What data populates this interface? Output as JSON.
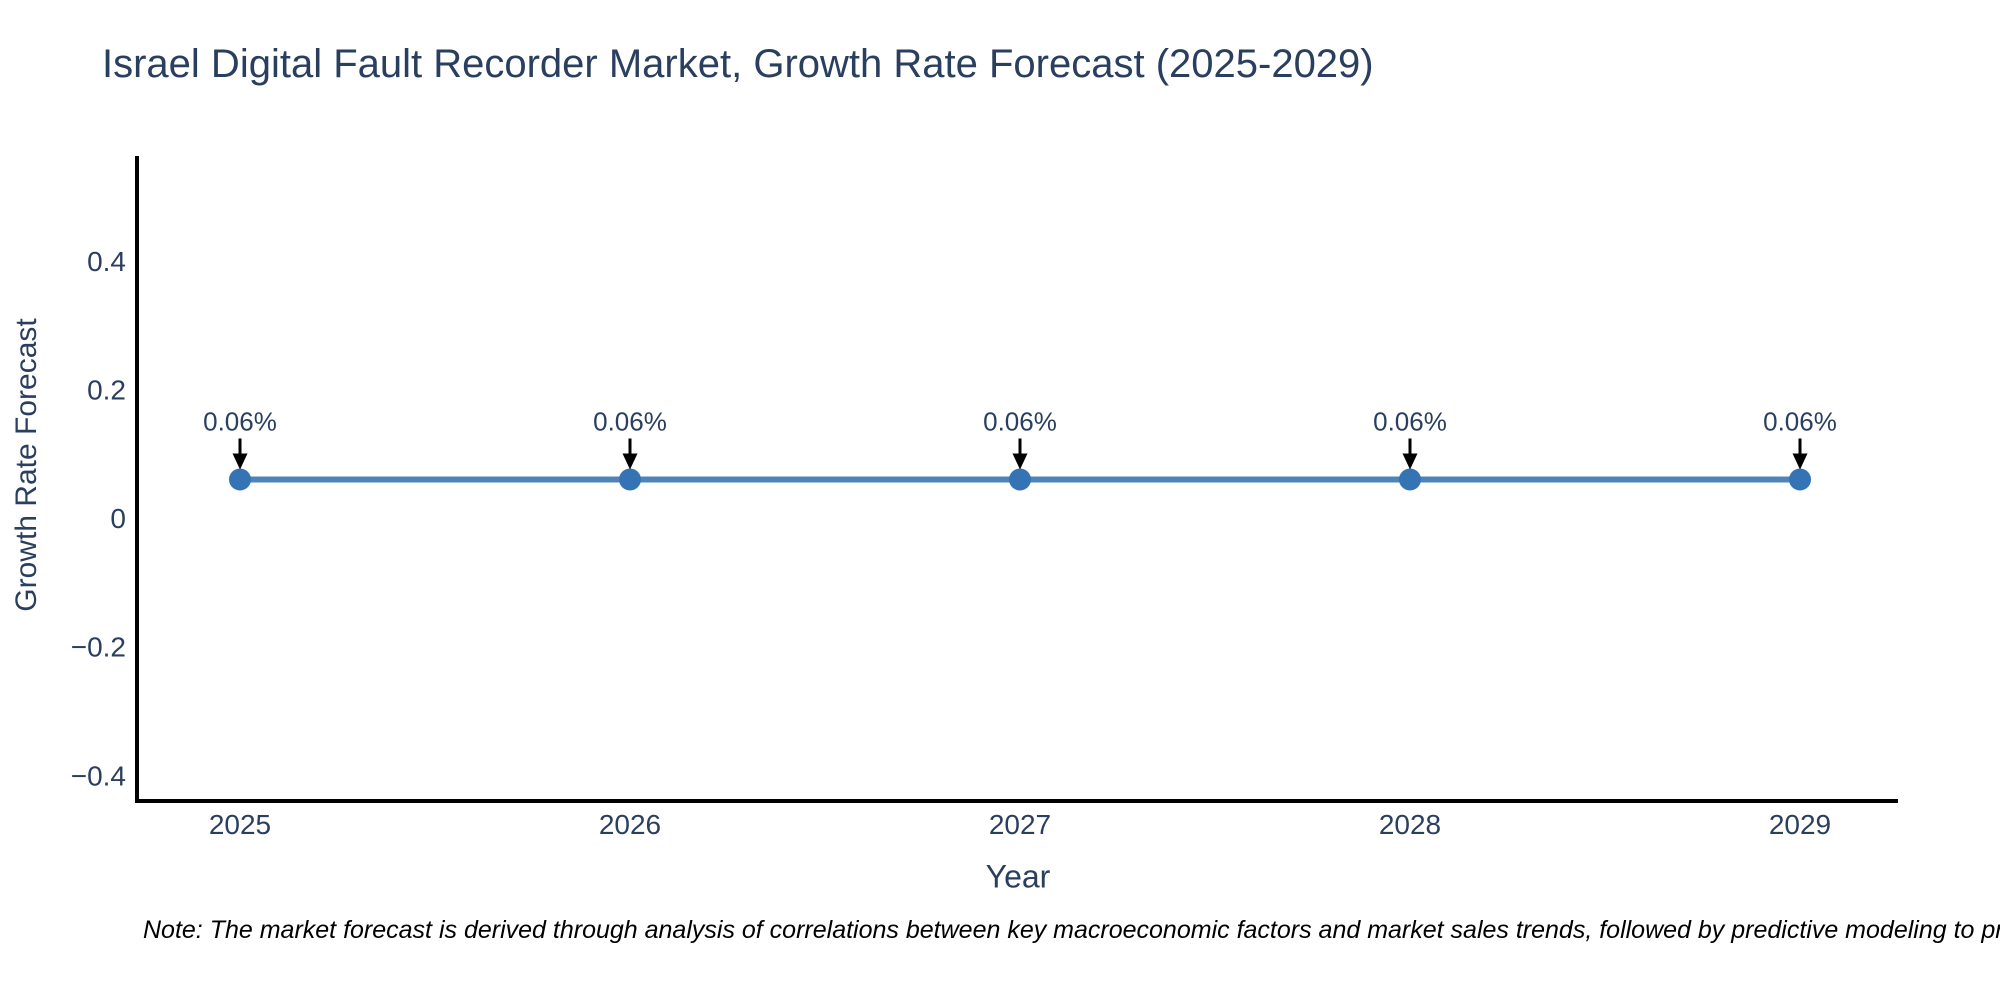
{
  "title": "Israel Digital Fault Recorder Market, Growth Rate Forecast (2025-2029)",
  "note": "Note: The market forecast is derived through analysis of correlations between key macroeconomic factors and market sales trends, followed by predictive modeling to project future sa",
  "chart_data": {
    "type": "line",
    "title": "Israel Digital Fault Recorder Market, Growth Rate Forecast (2025-2029)",
    "xlabel": "Year",
    "ylabel": "Growth Rate Forecast",
    "categories": [
      "2025",
      "2026",
      "2027",
      "2028",
      "2029"
    ],
    "series": [
      {
        "name": "Growth Rate Forecast",
        "values": [
          0.06,
          0.06,
          0.06,
          0.06,
          0.06
        ]
      }
    ],
    "point_labels": [
      "0.06%",
      "0.06%",
      "0.06%",
      "0.06%",
      "0.06%"
    ],
    "ylim": [
      -0.44,
      0.56
    ],
    "yticks": [
      {
        "value": 0.4,
        "label": "0.4"
      },
      {
        "value": 0.2,
        "label": "0.2"
      },
      {
        "value": 0,
        "label": "0"
      },
      {
        "value": -0.2,
        "label": "−0.2"
      },
      {
        "value": -0.4,
        "label": "−0.4"
      }
    ],
    "grid": false,
    "legend": "none",
    "colors": {
      "line": "#4e84b8",
      "marker": "#3474b4",
      "arrow": "#000000",
      "axis": "#000000",
      "text": "#2a3f5f",
      "background": "#ffffff"
    }
  }
}
